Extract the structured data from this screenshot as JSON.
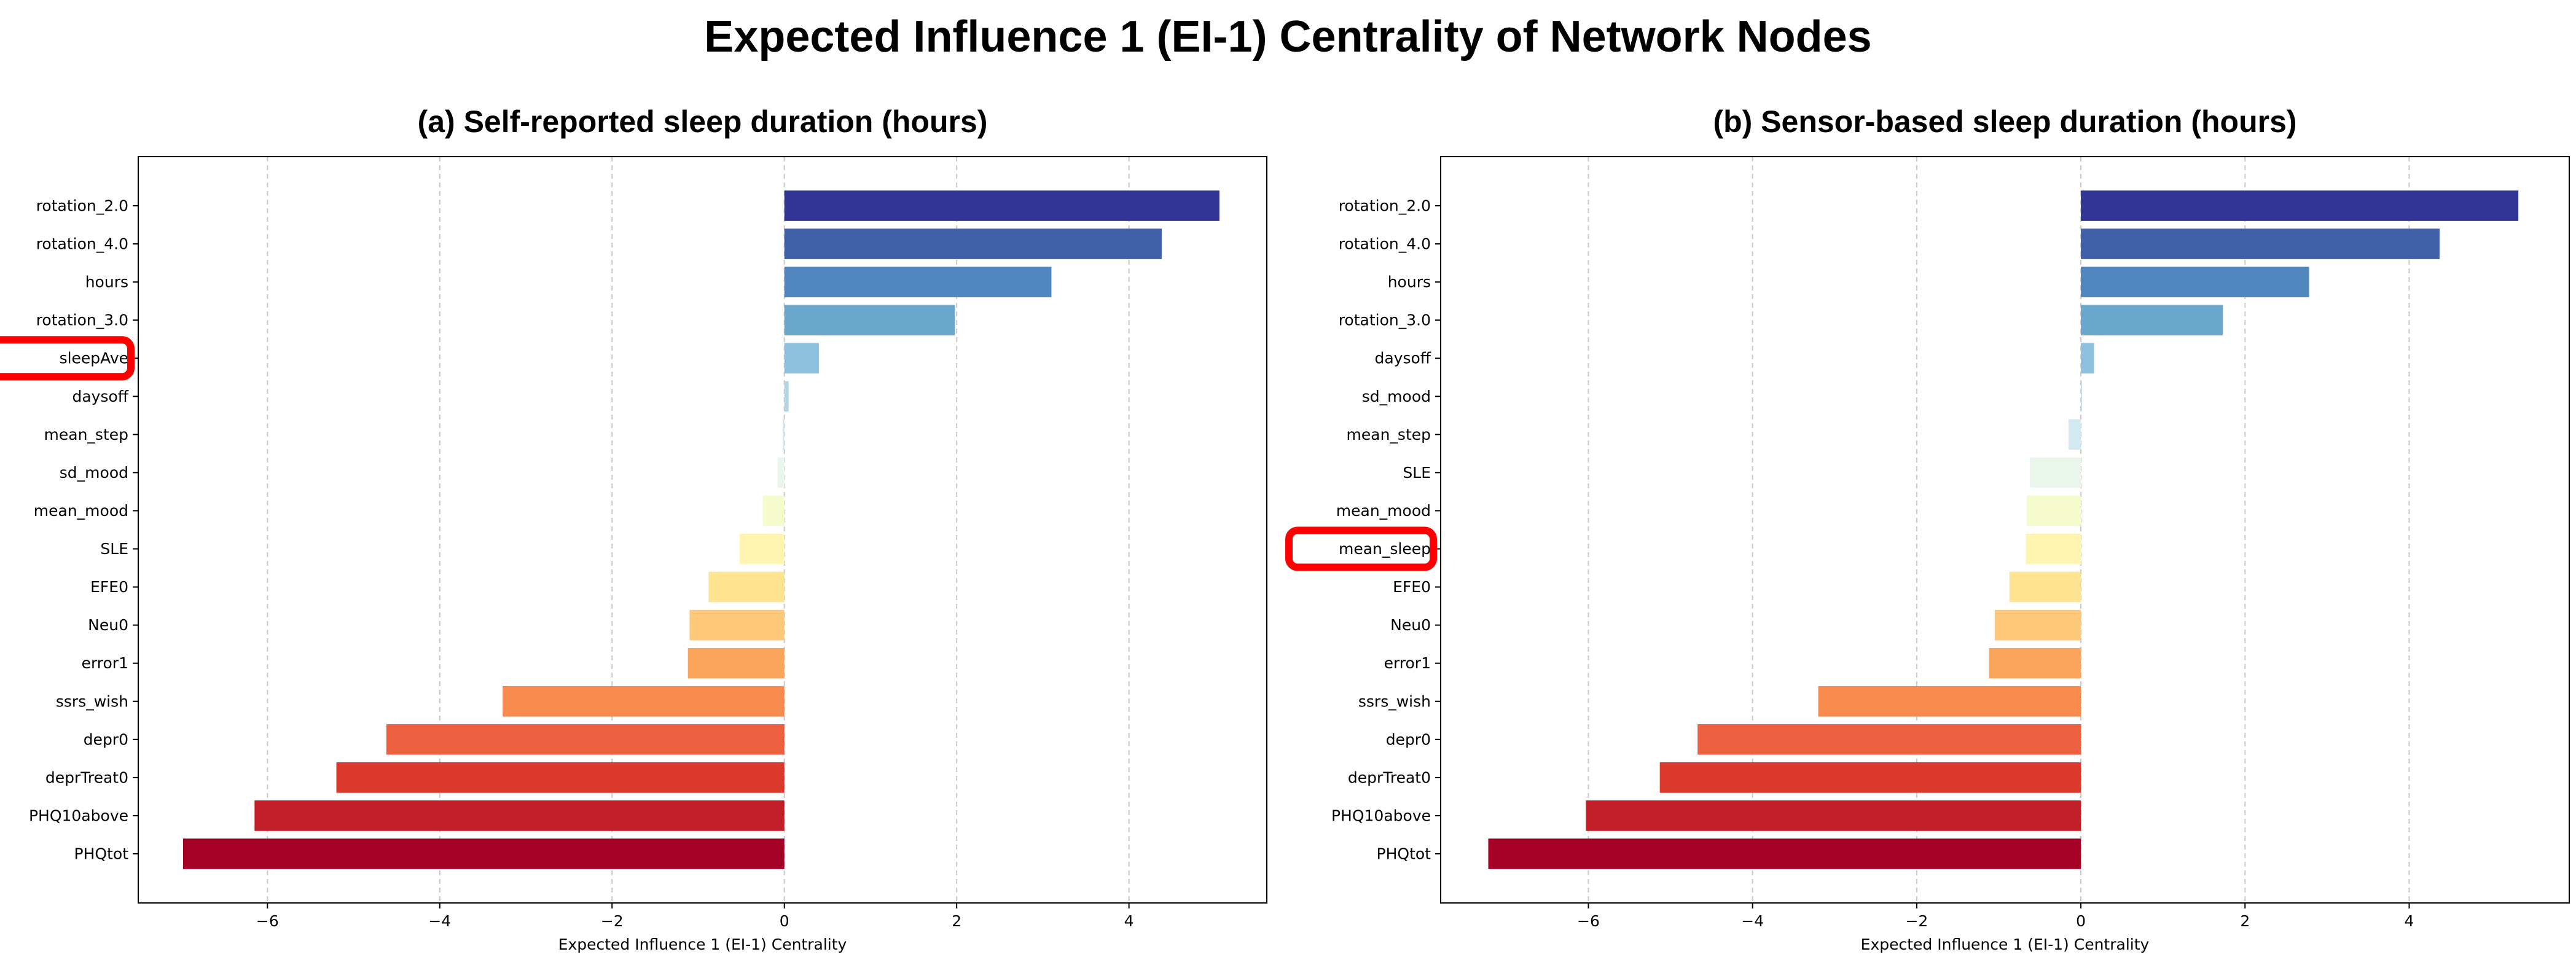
{
  "title": "Expected Influence 1 (EI-1) Centrality of Network Nodes",
  "chart_data": [
    {
      "type": "bar",
      "orientation": "horizontal",
      "title": "(a) Self-reported sleep duration (hours)",
      "xlabel": "Expected Influence 1 (EI-1) Centrality",
      "ylabel": "",
      "xlim": [
        -7.5,
        5.6
      ],
      "xticks": [
        -6,
        -4,
        -2,
        0,
        2,
        4
      ],
      "xtick_labels": [
        "−6",
        "−4",
        "−2",
        "0",
        "2",
        "4"
      ],
      "grid": "x-dashed",
      "categories": [
        "rotation_2.0",
        "rotation_4.0",
        "hours",
        "rotation_3.0",
        "sleepAve",
        "daysoff",
        "mean_step",
        "sd_mood",
        "mean_mood",
        "SLE",
        "EFE0",
        "Neu0",
        "error1",
        "ssrs_wish",
        "depr0",
        "deprTreat0",
        "PHQ10above",
        "PHQtot"
      ],
      "values": [
        5.05,
        4.38,
        3.1,
        1.98,
        0.4,
        0.05,
        -0.02,
        -0.08,
        -0.25,
        -0.52,
        -0.88,
        -1.1,
        -1.12,
        -3.27,
        -4.62,
        -5.2,
        -6.15,
        -6.98
      ],
      "colors": [
        "#313695",
        "#3f5fa9",
        "#4f86bd",
        "#6ba6cc",
        "#8cc0dd",
        "#b2d6e8",
        "#d3e9f1",
        "#eaf6ec",
        "#f5fbcc",
        "#fff5b0",
        "#fee391",
        "#fdc879",
        "#fca55d",
        "#f88a4e",
        "#ed6140",
        "#da392c",
        "#c11e27",
        "#a50026"
      ],
      "highlighted": "sleepAve"
    },
    {
      "type": "bar",
      "orientation": "horizontal",
      "title": "(b) Sensor-based sleep duration (hours)",
      "xlabel": "Expected Influence 1 (EI-1) Centrality",
      "ylabel": "",
      "xlim": [
        -7.8,
        5.95
      ],
      "xticks": [
        -6,
        -4,
        -2,
        0,
        2,
        4
      ],
      "xtick_labels": [
        "−6",
        "−4",
        "−2",
        "0",
        "2",
        "4"
      ],
      "grid": "x-dashed",
      "categories": [
        "rotation_2.0",
        "rotation_4.0",
        "hours",
        "rotation_3.0",
        "daysoff",
        "sd_mood",
        "mean_step",
        "SLE",
        "mean_mood",
        "mean_sleep",
        "EFE0",
        "Neu0",
        "error1",
        "ssrs_wish",
        "depr0",
        "deprTreat0",
        "PHQ10above",
        "PHQtot"
      ],
      "values": [
        5.33,
        4.37,
        2.78,
        1.73,
        0.16,
        0.01,
        -0.15,
        -0.62,
        -0.66,
        -0.67,
        -0.87,
        -1.05,
        -1.12,
        -3.2,
        -4.67,
        -5.13,
        -6.03,
        -7.22
      ],
      "colors": [
        "#313695",
        "#3f5fa9",
        "#4f86bd",
        "#6ba6cc",
        "#8cc0dd",
        "#b2d6e8",
        "#d3e9f1",
        "#eaf6ec",
        "#f5fbcc",
        "#fff5b0",
        "#fee391",
        "#fdc879",
        "#fca55d",
        "#f88a4e",
        "#ed6140",
        "#da392c",
        "#c11e27",
        "#a50026"
      ],
      "highlighted": "mean_sleep"
    }
  ]
}
